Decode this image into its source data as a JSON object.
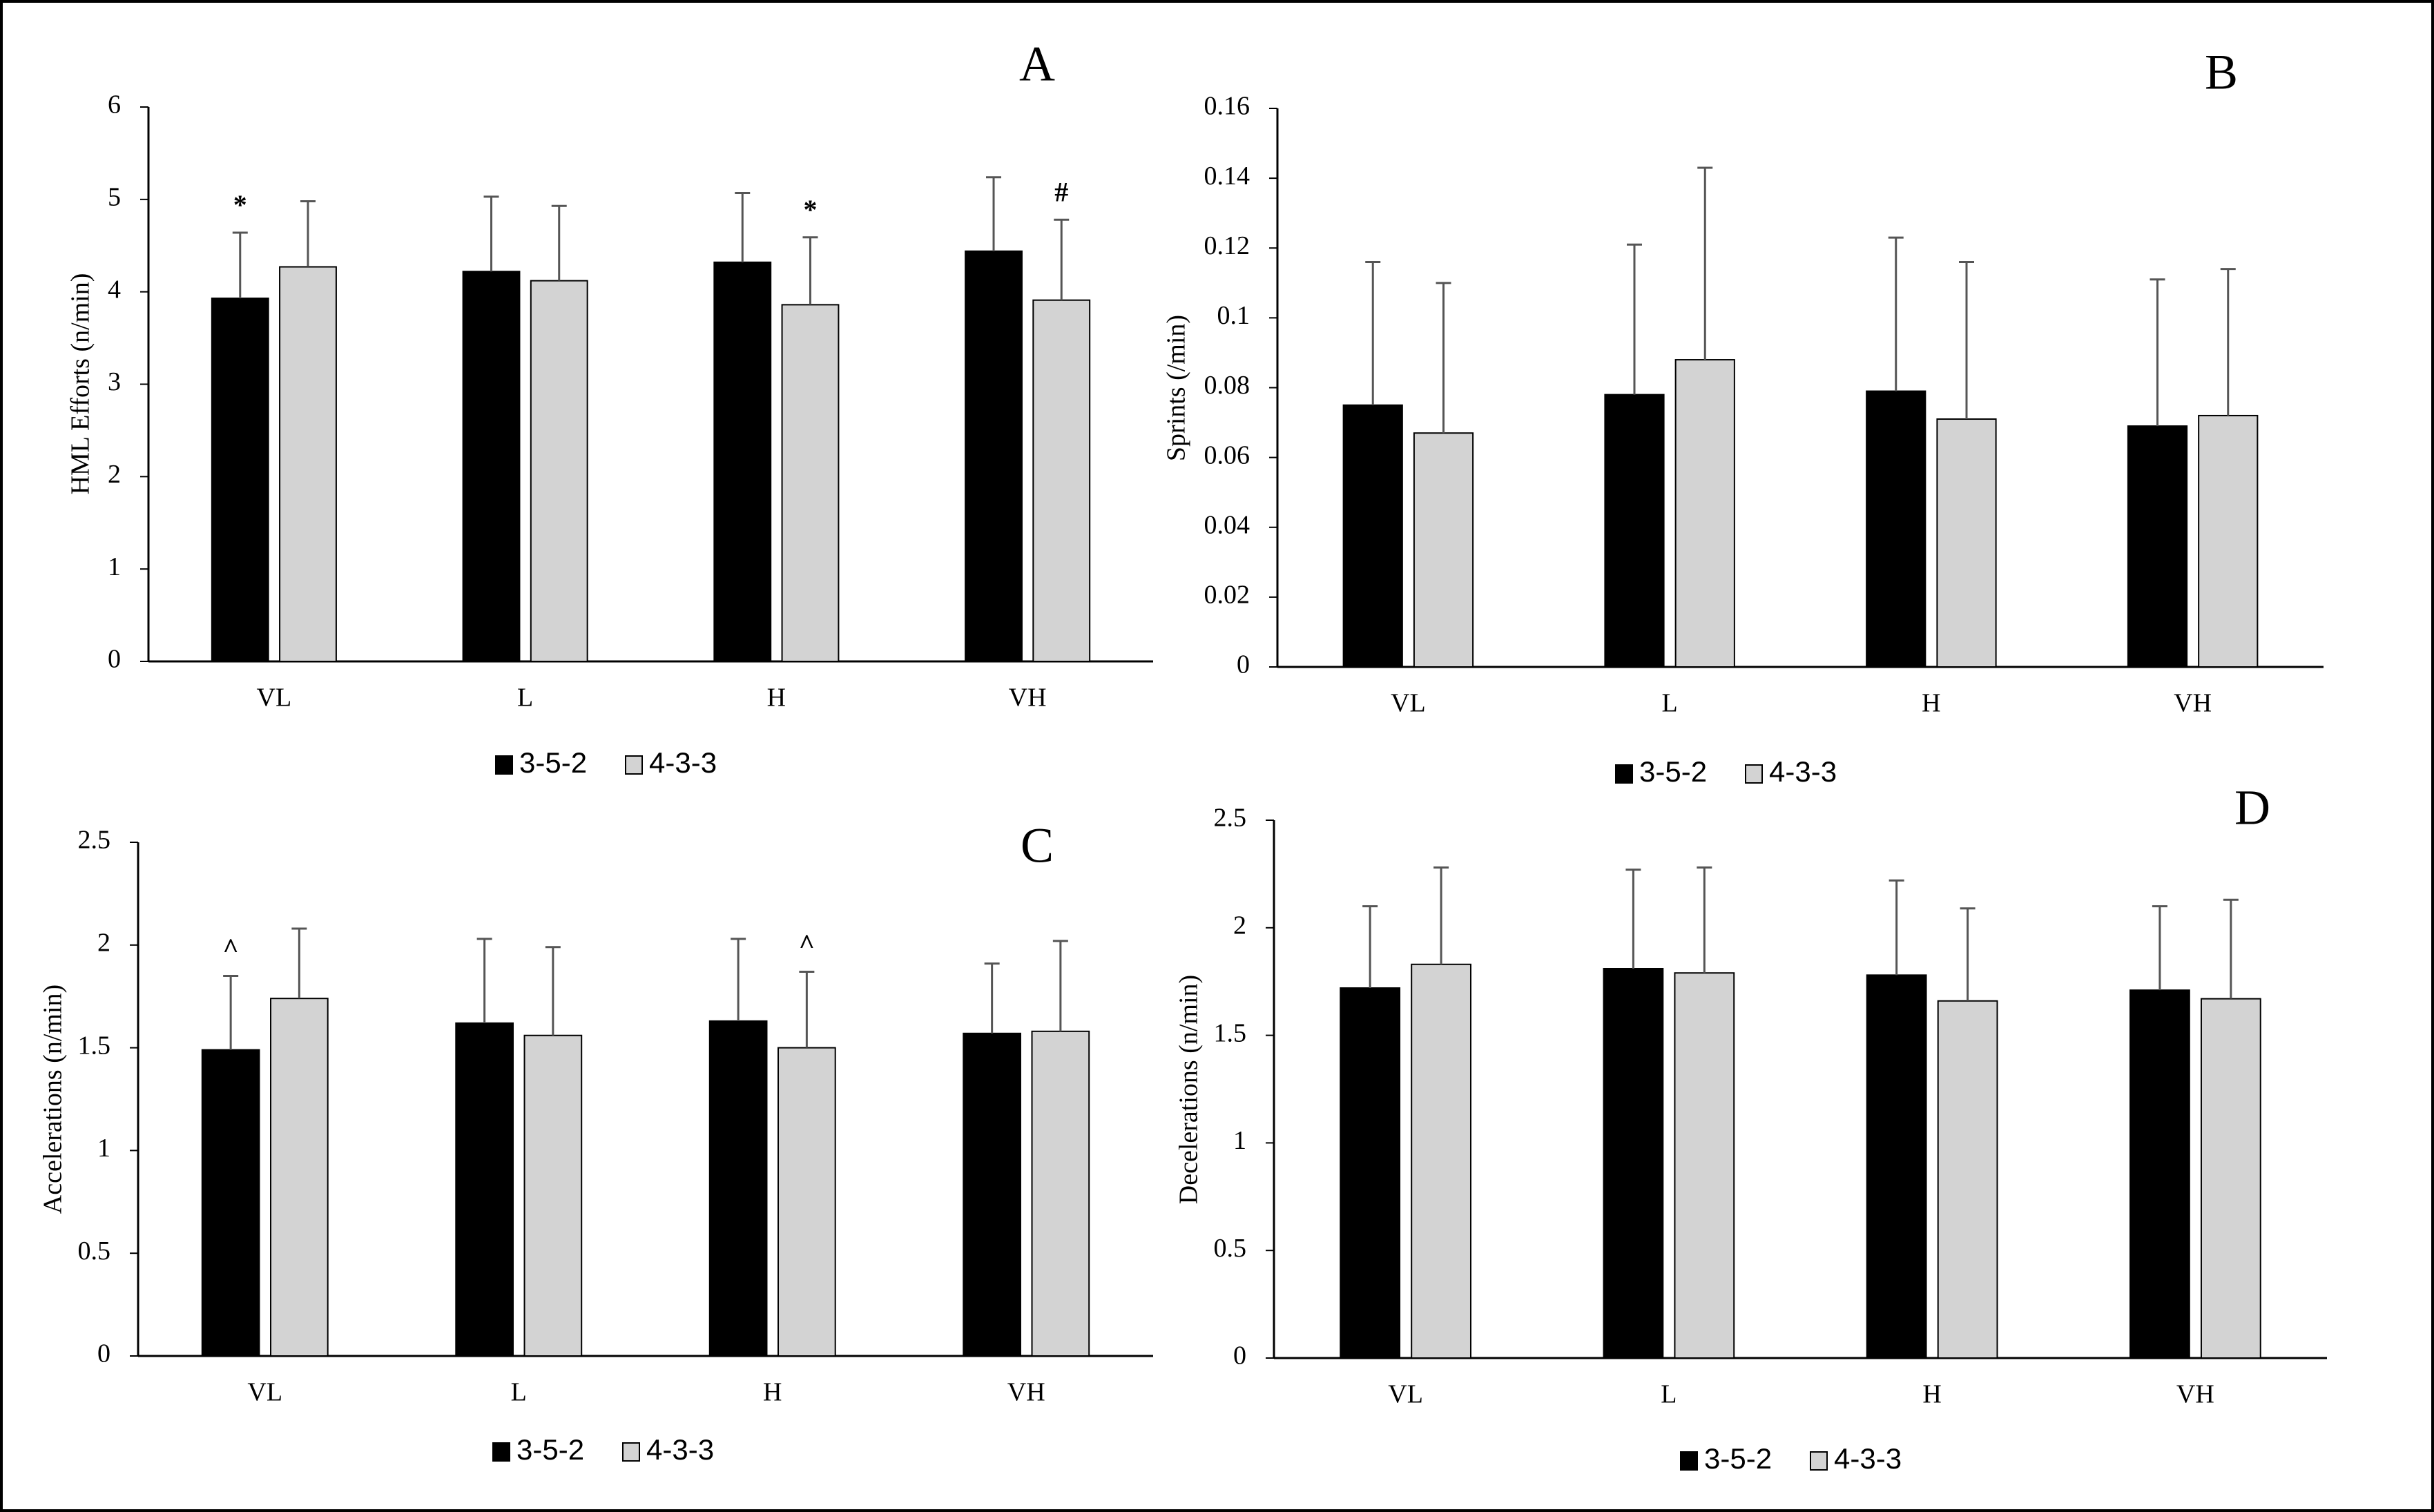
{
  "legend": {
    "series": [
      "3-5-2",
      "4-3-3"
    ]
  },
  "colors": {
    "series_1": "#000000",
    "series_2": "#d3d3d3",
    "error_bar": "#555555",
    "border": "#000000"
  },
  "chart_data": [
    {
      "panel": "A",
      "type": "bar",
      "ylabel": "HML Efforts (n/min)",
      "ylim": [
        0,
        6
      ],
      "yticks": [
        "0",
        "1",
        "2",
        "3",
        "4",
        "5",
        "6"
      ],
      "categories": [
        "VL",
        "L",
        "H",
        "VH"
      ],
      "series": [
        {
          "name": "3-5-2",
          "values": [
            3.93,
            4.22,
            4.32,
            4.44
          ],
          "errors": [
            0.71,
            0.81,
            0.75,
            0.8
          ]
        },
        {
          "name": "4-3-3",
          "values": [
            4.27,
            4.12,
            3.86,
            3.91
          ],
          "errors": [
            0.71,
            0.81,
            0.73,
            0.87
          ]
        }
      ],
      "annotations": [
        {
          "category": 0,
          "series": 0,
          "text": "*"
        },
        {
          "category": 2,
          "series": 1,
          "text": "*"
        },
        {
          "category": 3,
          "series": 1,
          "text": "#"
        }
      ]
    },
    {
      "panel": "B",
      "type": "bar",
      "ylabel": "Sprints (/min)",
      "ylim": [
        0,
        0.16
      ],
      "yticks": [
        "0",
        "0.02",
        "0.04",
        "0.06",
        "0.08",
        "0.1",
        "0.12",
        "0.14",
        "0.16"
      ],
      "categories": [
        "VL",
        "L",
        "H",
        "VH"
      ],
      "series": [
        {
          "name": "3-5-2",
          "values": [
            0.075,
            0.078,
            0.079,
            0.069
          ],
          "errors": [
            0.041,
            0.043,
            0.044,
            0.042
          ]
        },
        {
          "name": "4-3-3",
          "values": [
            0.067,
            0.088,
            0.071,
            0.072
          ],
          "errors": [
            0.043,
            0.055,
            0.045,
            0.042
          ]
        }
      ],
      "annotations": []
    },
    {
      "panel": "C",
      "type": "bar",
      "ylabel": "Accelerations (n/min)",
      "ylim": [
        0,
        2.5
      ],
      "yticks": [
        "0",
        "0.5",
        "1",
        "1.5",
        "2",
        "2.5"
      ],
      "categories": [
        "VL",
        "L",
        "H",
        "VH"
      ],
      "series": [
        {
          "name": "3-5-2",
          "values": [
            1.49,
            1.62,
            1.63,
            1.57
          ],
          "errors": [
            0.36,
            0.41,
            0.4,
            0.34
          ]
        },
        {
          "name": "4-3-3",
          "values": [
            1.74,
            1.56,
            1.5,
            1.58
          ],
          "errors": [
            0.34,
            0.43,
            0.37,
            0.44
          ]
        }
      ],
      "annotations": [
        {
          "category": 0,
          "series": 0,
          "text": "^"
        },
        {
          "category": 2,
          "series": 1,
          "text": "^"
        }
      ]
    },
    {
      "panel": "D",
      "type": "bar",
      "ylabel": "Decelerations (n/min)",
      "ylim": [
        0,
        2.5
      ],
      "yticks": [
        "0",
        "0.5",
        "1",
        "1.5",
        "2",
        "2.5"
      ],
      "categories": [
        "VL",
        "L",
        "H",
        "VH"
      ],
      "series": [
        {
          "name": "3-5-2",
          "values": [
            1.72,
            1.81,
            1.78,
            1.71
          ],
          "errors": [
            0.38,
            0.46,
            0.44,
            0.39
          ]
        },
        {
          "name": "4-3-3",
          "values": [
            1.83,
            1.79,
            1.66,
            1.67
          ],
          "errors": [
            0.45,
            0.49,
            0.43,
            0.46
          ]
        }
      ],
      "annotations": []
    }
  ]
}
